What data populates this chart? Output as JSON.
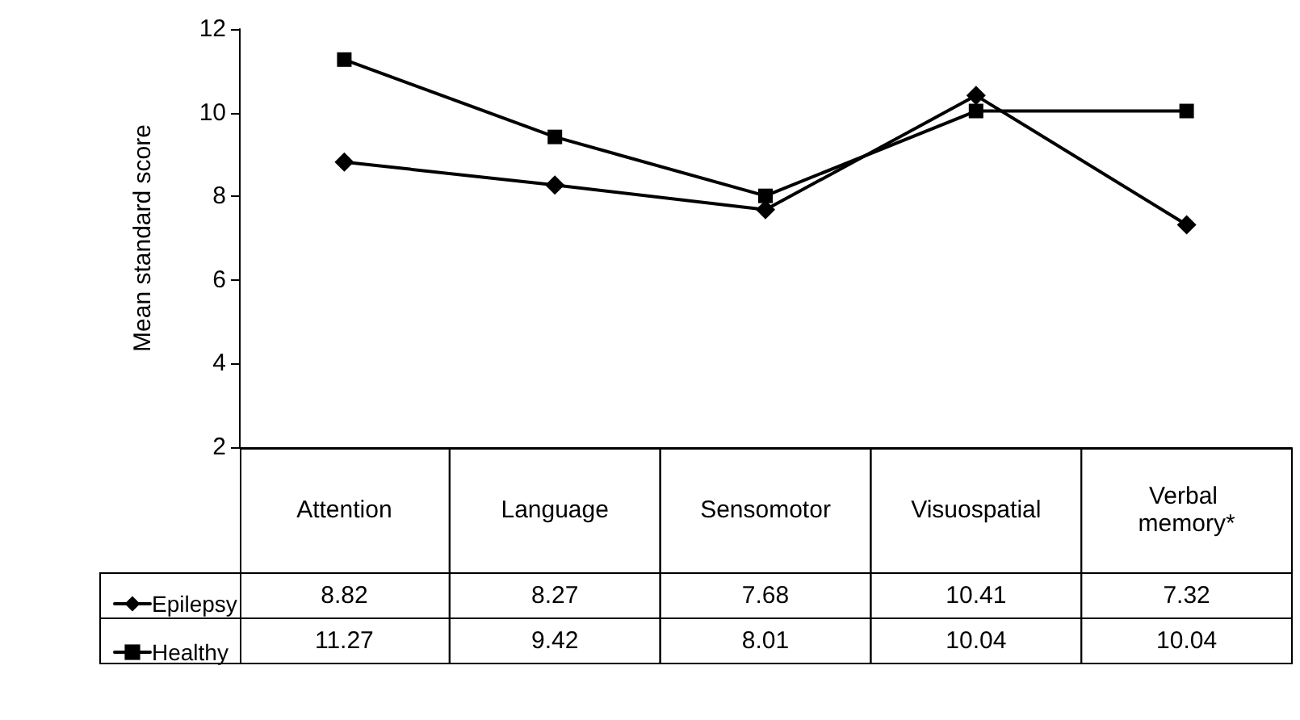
{
  "chart_data": {
    "type": "line",
    "ylabel": "Mean standard score",
    "categories": [
      "Attention",
      "Language",
      "Sensomotor",
      "Visuospatial",
      "Verbal memory*"
    ],
    "series": [
      {
        "name": "Epilepsy",
        "color": "#000000",
        "marker": "diamond",
        "values": [
          8.82,
          8.27,
          7.68,
          10.41,
          7.32
        ]
      },
      {
        "name": "Healthy",
        "color": "#000000",
        "marker": "square",
        "values": [
          11.27,
          9.42,
          8.01,
          10.04,
          10.04
        ]
      }
    ],
    "ylim": [
      2,
      12
    ],
    "yticks": [
      2,
      4,
      6,
      8,
      10,
      12
    ],
    "grid": false,
    "legend": "bottom left",
    "data_labels": true,
    "line_style": "solid"
  }
}
